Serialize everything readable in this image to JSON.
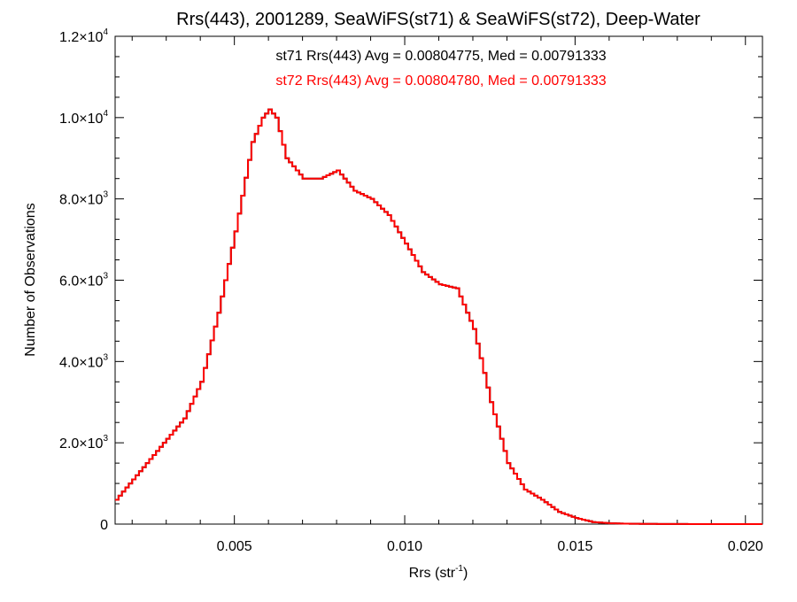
{
  "chart_data": {
    "type": "line",
    "style": "step",
    "title": "Rrs(443), 2001289, SeaWiFS(st71) & SeaWiFS(st72), Deep-Water",
    "xlabel": {
      "base": "Rrs (str",
      "sup": "-1",
      "end": ")"
    },
    "ylabel": "Number of Observations",
    "xlim": [
      0.0015,
      0.0205
    ],
    "ylim": [
      0,
      12000
    ],
    "x_ticks": [
      0.005,
      0.01,
      0.015,
      0.02
    ],
    "x_tick_labels": [
      "0.005",
      "0.010",
      "0.015",
      "0.020"
    ],
    "y_ticks": [
      0,
      2000,
      4000,
      6000,
      8000,
      10000,
      12000
    ],
    "y_tick_labels": [
      {
        "mant": "0",
        "exp": ""
      },
      {
        "mant": "2.0×10",
        "exp": "3"
      },
      {
        "mant": "4.0×10",
        "exp": "3"
      },
      {
        "mant": "6.0×10",
        "exp": "3"
      },
      {
        "mant": "8.0×10",
        "exp": "3"
      },
      {
        "mant": "1.0×10",
        "exp": "4"
      },
      {
        "mant": "1.2×10",
        "exp": "4"
      }
    ],
    "annotations": [
      {
        "text": "st71 Rrs(443) Avg = 0.00804775, Med = 0.00791333",
        "color": "#000000"
      },
      {
        "text": "st72 Rrs(443) Avg = 0.00804780, Med = 0.00791333",
        "color": "#ff0000"
      }
    ],
    "series": [
      {
        "name": "st71",
        "color": "#000000"
      },
      {
        "name": "st72",
        "color": "#ff0000"
      }
    ],
    "x": [
      0.0015,
      0.0025,
      0.0035,
      0.004,
      0.0045,
      0.005,
      0.0055,
      0.0058,
      0.006,
      0.0062,
      0.0065,
      0.007,
      0.0075,
      0.008,
      0.0085,
      0.009,
      0.0095,
      0.01,
      0.0105,
      0.011,
      0.0115,
      0.012,
      0.0125,
      0.013,
      0.0135,
      0.014,
      0.0145,
      0.015,
      0.0155,
      0.016,
      0.0165,
      0.017,
      0.018,
      0.019,
      0.0205
    ],
    "values": [
      600,
      1600,
      2600,
      3500,
      5200,
      7200,
      9400,
      10000,
      10200,
      10000,
      9000,
      8500,
      8500,
      8700,
      8200,
      8000,
      7600,
      6900,
      6200,
      5900,
      5800,
      4800,
      3000,
      1500,
      850,
      600,
      300,
      150,
      50,
      20,
      10,
      5,
      2,
      0,
      0
    ]
  }
}
